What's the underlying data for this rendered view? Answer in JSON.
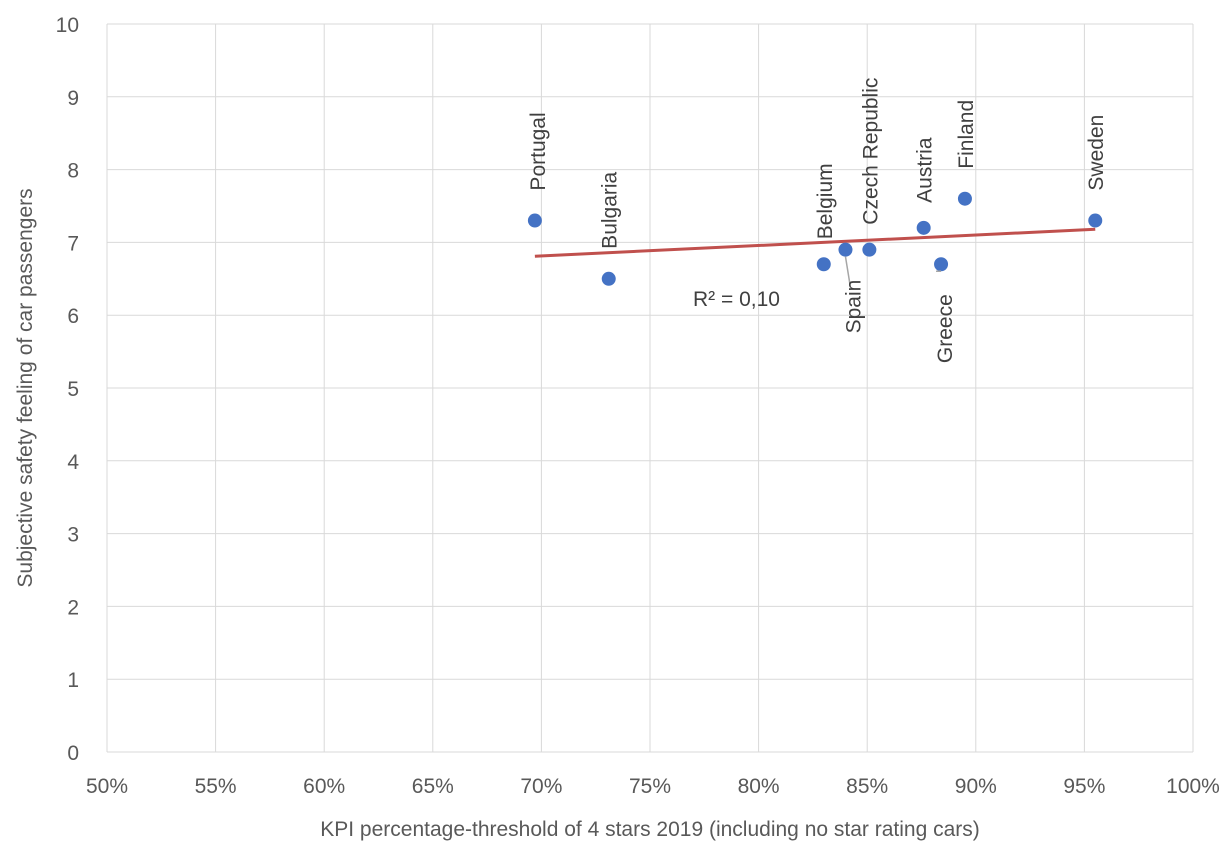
{
  "chart_data": {
    "type": "scatter",
    "title": "",
    "xlabel": "KPI percentage-threshold of 4 stars 2019 (including no star rating cars)",
    "ylabel": "Subjective safety feeling of car passengers",
    "xlim": [
      0.5,
      1.0
    ],
    "ylim": [
      0,
      10
    ],
    "x_ticks": [
      0.5,
      0.55,
      0.6,
      0.65,
      0.7,
      0.75,
      0.8,
      0.85,
      0.9,
      0.95,
      1.0
    ],
    "x_tick_labels": [
      "50%",
      "55%",
      "60%",
      "65%",
      "70%",
      "75%",
      "80%",
      "85%",
      "90%",
      "95%",
      "100%"
    ],
    "y_ticks": [
      0,
      1,
      2,
      3,
      4,
      5,
      6,
      7,
      8,
      9,
      10
    ],
    "y_tick_labels": [
      "0",
      "1",
      "2",
      "3",
      "4",
      "5",
      "6",
      "7",
      "8",
      "9",
      "10"
    ],
    "grid": true,
    "marker_color": "#4472C4",
    "trendline_color": "#C0504D",
    "leader_color": "#A6A6A6",
    "points": [
      {
        "label": "Portugal",
        "x": 0.697,
        "y": 7.3
      },
      {
        "label": "Bulgaria",
        "x": 0.731,
        "y": 6.5
      },
      {
        "label": "Belgium",
        "x": 0.83,
        "y": 6.7
      },
      {
        "label": "Spain",
        "x": 0.84,
        "y": 6.9
      },
      {
        "label": "Czech Republic",
        "x": 0.851,
        "y": 6.9
      },
      {
        "label": "Austria",
        "x": 0.876,
        "y": 7.2
      },
      {
        "label": "Greece",
        "x": 0.884,
        "y": 6.7
      },
      {
        "label": "Finland",
        "x": 0.895,
        "y": 7.6
      },
      {
        "label": "Sweden",
        "x": 0.955,
        "y": 7.3
      }
    ],
    "trendline": {
      "x": [
        0.697,
        0.955
      ],
      "y": [
        6.81,
        7.18
      ],
      "r2_label": "R² = 0,10"
    }
  }
}
